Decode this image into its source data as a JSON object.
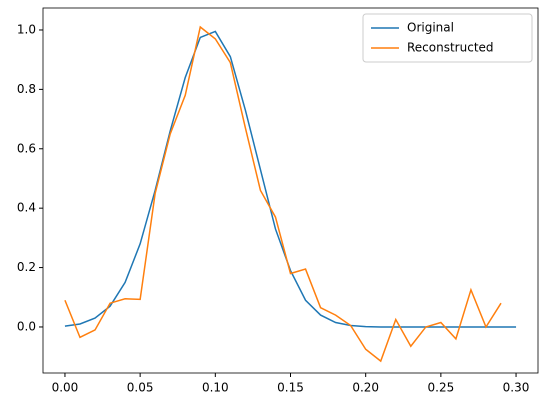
{
  "chart_data": {
    "type": "line",
    "x": [
      0,
      0.01,
      0.02,
      0.03,
      0.04,
      0.05,
      0.06,
      0.07,
      0.08,
      0.09,
      0.1,
      0.11,
      0.12,
      0.13,
      0.14,
      0.15,
      0.16,
      0.17,
      0.18,
      0.19,
      0.2,
      0.21,
      0.22,
      0.23,
      0.24,
      0.25,
      0.26,
      0.27,
      0.28,
      0.29,
      0.3
    ],
    "series": [
      {
        "name": "Original",
        "color": "#1f77b4",
        "values": [
          0.003,
          0.01,
          0.03,
          0.07,
          0.15,
          0.28,
          0.46,
          0.66,
          0.84,
          0.975,
          0.995,
          0.91,
          0.73,
          0.53,
          0.33,
          0.19,
          0.09,
          0.04,
          0.015,
          0.005,
          0.001,
          0,
          0,
          0,
          0,
          0,
          0,
          0,
          0,
          0,
          0
        ]
      },
      {
        "name": "Reconstructed",
        "color": "#ff7f0e",
        "values": [
          0.09,
          -0.035,
          -0.01,
          0.08,
          0.095,
          0.093,
          0.45,
          0.65,
          0.78,
          1.01,
          0.97,
          0.89,
          0.67,
          0.46,
          0.37,
          0.18,
          0.195,
          0.065,
          0.04,
          0.005,
          -0.075,
          -0.115,
          0.025,
          -0.065,
          0.0,
          0.015,
          -0.04,
          0.125,
          0.0,
          0.08,
          null
        ]
      }
    ],
    "xlim": [
      -0.0146,
      0.3146
    ],
    "ylim": [
      -0.155,
      1.074
    ],
    "xticks": [
      {
        "value": 0,
        "label": "0.00"
      },
      0.05,
      {
        "value": 0.1,
        "label": "0.10"
      },
      0.15,
      {
        "value": 0.2,
        "label": "0.20"
      },
      0.25,
      {
        "value": 0.3,
        "label": "0.30"
      }
    ],
    "yticks": [
      {
        "value": 0,
        "label": "0.0"
      },
      0.2,
      0.4,
      0.6,
      0.8,
      {
        "value": 1,
        "label": "1.0"
      }
    ],
    "legend": "upper right"
  }
}
